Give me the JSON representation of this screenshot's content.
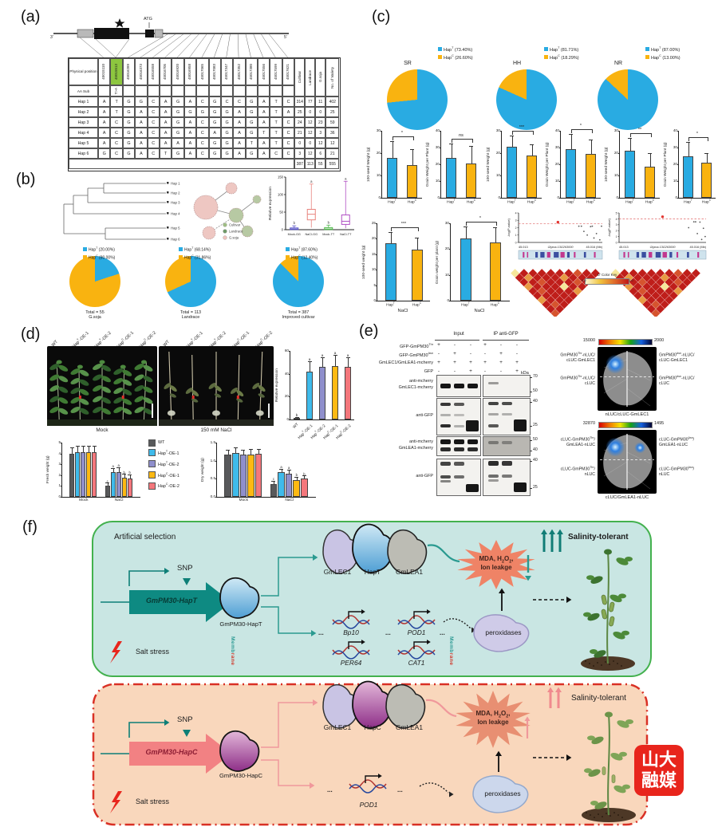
{
  "panel_labels": {
    "a": "(a)",
    "b": "(b)",
    "c": "(c)",
    "d": "(d)",
    "e": "(e)",
    "f": "(f)"
  },
  "panel_a": {
    "gene": {
      "atg": "ATG",
      "left_end": "3'",
      "right_end": "5'"
    },
    "table": {
      "header_label": "Physical position",
      "aa_label": "AA Sub",
      "aa_value": "T>A",
      "highlight_index": 1,
      "positions": [
        "45015110",
        "45015513",
        "45016289",
        "45016373",
        "45016558",
        "45016705",
        "45016920",
        "45016958",
        "45017065",
        "45017083",
        "45017347",
        "45017352",
        "45017380",
        "45017556",
        "45017599",
        "45017621"
      ],
      "count_headers": [
        "Cultivar",
        "Landrace",
        "G.soja",
        "No. of Variety"
      ],
      "haplotypes": [
        {
          "name": "Hap 1",
          "alleles": [
            "A",
            "T",
            "G",
            "G",
            "C",
            "A",
            "G",
            "A",
            "C",
            "G",
            "C",
            "C",
            "G",
            "A",
            "T",
            "C"
          ],
          "counts": [
            "314",
            "77",
            "11",
            "402"
          ]
        },
        {
          "name": "Hap 2",
          "alleles": [
            "A",
            "T",
            "G",
            "A",
            "C",
            "A",
            "G",
            "G",
            "G",
            "G",
            "G",
            "A",
            "G",
            "A",
            "T",
            "A"
          ],
          "counts": [
            "25",
            "0",
            "0",
            "25"
          ]
        },
        {
          "name": "Hap 3",
          "alleles": [
            "A",
            "C",
            "G",
            "A",
            "C",
            "A",
            "G",
            "A",
            "C",
            "G",
            "G",
            "A",
            "G",
            "A",
            "T",
            "C"
          ],
          "counts": [
            "24",
            "12",
            "23",
            "59"
          ]
        },
        {
          "name": "Hap 4",
          "alleles": [
            "A",
            "C",
            "G",
            "A",
            "C",
            "A",
            "G",
            "A",
            "C",
            "A",
            "G",
            "A",
            "G",
            "T",
            "T",
            "C"
          ],
          "counts": [
            "21",
            "12",
            "3",
            "36"
          ]
        },
        {
          "name": "Hap 5",
          "alleles": [
            "A",
            "C",
            "G",
            "A",
            "C",
            "A",
            "A",
            "A",
            "C",
            "G",
            "G",
            "A",
            "T",
            "A",
            "T",
            "C"
          ],
          "counts": [
            "0",
            "0",
            "12",
            "12"
          ]
        },
        {
          "name": "Hap 6",
          "alleles": [
            "G",
            "C",
            "G",
            "A",
            "C",
            "T",
            "G",
            "A",
            "C",
            "G",
            "G",
            "A",
            "G",
            "A",
            "C",
            "C"
          ],
          "counts": [
            "3",
            "12",
            "6",
            "21"
          ]
        }
      ],
      "totals": [
        "387",
        "113",
        "55",
        "555"
      ]
    }
  },
  "panel_b": {
    "tree_leaves": [
      "Hap 1",
      "Hap 2",
      "Hap 3",
      "Hap 4",
      "Hap 5",
      "Hap 6"
    ],
    "network_legend": [
      {
        "label": "Cultivar",
        "color": "#9fbe83"
      },
      {
        "label": "Landrace",
        "color": "#6f9a68"
      },
      {
        "label": "G.soja",
        "color": "#efc3bd"
      }
    ]
  },
  "panel_c": {
    "color_key": {
      "title": "D' Color Key",
      "min": "0.0",
      "max": "1.0"
    }
  },
  "panel_d": {
    "plant_labels": [
      "WT",
      "Hap^{T}-OE-1",
      "Hap^{T}-OE-2",
      "Hap^{C}-OE-1",
      "Hap^{C}-OE-2"
    ],
    "captions": [
      "Mock",
      "150 mM NaCl"
    ]
  },
  "panel_e": {
    "coip": {
      "col_groups": [
        "Input",
        "IP anti-GFP"
      ],
      "kda_unit": "kDa",
      "rows": [
        {
          "label": "GFP-GmPM30^{Thr}",
          "signs": [
            "+",
            "-",
            "-",
            "+",
            "-",
            "-"
          ]
        },
        {
          "label": "GFP-GmPM30^{Asn}",
          "signs": [
            "-",
            "+",
            "-",
            "-",
            "+",
            "-"
          ]
        },
        {
          "label": "GmLEC1/GmLEA1-mcherry",
          "signs": [
            "+",
            "+",
            "+",
            "+",
            "+",
            "+"
          ]
        },
        {
          "label": "GFP",
          "signs": [
            "-",
            "-",
            "+",
            "-",
            "-",
            "+"
          ]
        }
      ],
      "blot_labels": [
        [
          "anti-mcherry",
          "GmLEC1-mcherry"
        ],
        [
          "anti-GFP"
        ],
        [
          "anti-mcherry",
          "GmLEA1-mcherry"
        ],
        [
          "anti-GFP"
        ]
      ],
      "kda_marks": [
        [
          "70",
          "50"
        ],
        [
          "40",
          "25"
        ],
        [
          "50",
          "40"
        ],
        [
          "40",
          "25"
        ]
      ]
    },
    "luc": [
      {
        "scale": [
          "15000",
          "2000"
        ],
        "left_top": [
          "GmPM30^{Thr}-nLUC/",
          "cLUC-GmLEC1"
        ],
        "right_top": [
          "GmPM30^{Asn}-nLUC/",
          "cLUC-GmLEC1"
        ],
        "left_bottom": [
          "GmPM30^{Thr}-nLUC/",
          "cLUC"
        ],
        "right_bottom": [
          "GmPM30^{Asn}-nLUC/",
          "cLUC"
        ],
        "caption": "nLUC/cLUC-GmLEC1"
      },
      {
        "scale": [
          "32870",
          "1495"
        ],
        "left_top": [
          "cLUC-GmPM30^{Thr}/",
          "GmLEA1-nLUC"
        ],
        "right_top": [
          "cLUC-GmPM30^{Asn}/",
          "GmLEA1-nLUC"
        ],
        "left_bottom": [
          "cLUC-GmPM30^{Thr}/",
          "nLUC"
        ],
        "right_bottom": [
          "cLUC-GmPM30^{Asn}/",
          "nLUC"
        ],
        "caption": "cLUC/GmLEA1-nLUC"
      }
    ]
  },
  "panel_f": {
    "top": {
      "title": "Artificial selection",
      "snp": "SNP",
      "gene": "GmPM30-HapT",
      "protein": "GmPM30-HapT",
      "stress": "Salt stress",
      "membrane": "Membrane",
      "complex": [
        "GmLEC1",
        "HapT",
        "GmLEA1"
      ],
      "genes": [
        "Bp10",
        "POD1",
        "PER64",
        "CAT1"
      ],
      "dots": "...",
      "enzyme": "peroxidases",
      "burst": [
        "MDA, H_{2}O_{2},",
        "Ion leakge"
      ],
      "outcome": "Salinity-tolerant"
    },
    "bottom": {
      "snp": "SNP",
      "gene": "GmPM30-HapC",
      "protein": "GmPM30-HapC",
      "stress": "Salt stress",
      "membrane": "Membrane",
      "complex": [
        "GmLEC1",
        "HapC",
        "GmLEA1"
      ],
      "gene_single": "POD1",
      "dots": "...",
      "enzyme": "peroxidases",
      "burst": [
        "MDA, H_{2}O_{2},",
        "Ion leakge"
      ],
      "outcome": "Salinity-tolerant"
    },
    "logo": [
      "山大",
      "融媒"
    ]
  },
  "chart_data": {
    "box_expr": {
      "type": "box",
      "ylabel": "Relative expression",
      "ylim": [
        0,
        150
      ],
      "yticks": [
        0,
        50,
        100,
        150
      ],
      "categories": [
        "Mock-GG",
        "NaCl-GG",
        "Mock-TT",
        "NaCl-TT"
      ],
      "colors": [
        "#5b57c7",
        "#e8837d",
        "#53b94e",
        "#b04fc4"
      ],
      "boxes": [
        {
          "lo": 0,
          "q1": 0.5,
          "med": 2,
          "q3": 5,
          "hi": 11
        },
        {
          "lo": 6,
          "q1": 28,
          "med": 44,
          "q3": 58,
          "hi": 130
        },
        {
          "lo": 0,
          "q1": 0.5,
          "med": 2,
          "q3": 6,
          "hi": 13
        },
        {
          "lo": 4,
          "q1": 15,
          "med": 24,
          "q3": 42,
          "hi": 138
        }
      ],
      "letters": [
        "b",
        "a",
        "b",
        "a"
      ]
    },
    "pie_b1": {
      "type": "pie",
      "slices": [
        {
          "label": "Hap^{T} (20.00%)",
          "value": 20,
          "color": "#29abe2"
        },
        {
          "label": "Hap^{C} (80.00%)",
          "value": 80,
          "color": "#f9b310"
        }
      ],
      "caption": [
        "Total = 55",
        "G.soja"
      ]
    },
    "pie_b2": {
      "type": "pie",
      "slices": [
        {
          "label": "Hap^{T} (68.14%)",
          "value": 68.14,
          "color": "#29abe2"
        },
        {
          "label": "Hap^{C} (31.86%)",
          "value": 31.86,
          "color": "#f9b310"
        }
      ],
      "caption": [
        "Total = 113",
        "Landrace"
      ]
    },
    "pie_b3": {
      "type": "pie",
      "slices": [
        {
          "label": "Hap^{T} (87.60%)",
          "value": 87.6,
          "color": "#29abe2"
        },
        {
          "label": "Hap^{C} (12.40%)",
          "value": 12.4,
          "color": "#f9b310"
        }
      ],
      "caption": [
        "Total = 387",
        "Improved cultivar"
      ]
    },
    "pie_sr": {
      "type": "pie",
      "title": "SR",
      "slices": [
        {
          "label": "Hap^{T} (73.40%)",
          "value": 73.4,
          "color": "#29abe2"
        },
        {
          "label": "Hap^{C} (26.60%)",
          "value": 26.6,
          "color": "#f9b310"
        }
      ]
    },
    "pie_hh": {
      "type": "pie",
      "title": "HH",
      "slices": [
        {
          "label": "Hap^{T} (81.71%)",
          "value": 81.71,
          "color": "#29abe2"
        },
        {
          "label": "Hap^{C} (18.29%)",
          "value": 18.29,
          "color": "#f9b310"
        }
      ]
    },
    "pie_nr": {
      "type": "pie",
      "title": "NR",
      "slices": [
        {
          "label": "Hap^{T} (87.00%)",
          "value": 87,
          "color": "#29abe2"
        },
        {
          "label": "Hap^{C} (13.00%)",
          "value": 13,
          "color": "#f9b310"
        }
      ]
    },
    "hap_bars": [
      {
        "type": "bar",
        "ylabel": "100-seed Weight (g)",
        "ymax": 30,
        "yticks": [
          0,
          10,
          20,
          30
        ],
        "categories": [
          "Hap^{T}",
          "Hap^{C}"
        ],
        "values": [
          18,
          14.5
        ],
        "errors": [
          7,
          7
        ],
        "sig": "*",
        "colors": [
          "#29abe2",
          "#f9b310"
        ]
      },
      {
        "type": "bar",
        "ylabel": "Grain Weight per Plant (g)",
        "ymax": 40,
        "yticks": [
          0,
          10,
          20,
          30,
          40
        ],
        "categories": [
          "Hap^{T}",
          "Hap^{C}"
        ],
        "values": [
          24,
          20.5
        ],
        "errors": [
          8,
          10
        ],
        "sig": "ns",
        "colors": [
          "#29abe2",
          "#f9b310"
        ]
      },
      {
        "type": "bar",
        "ylabel": "100-seed Weight (g)",
        "ymax": 30,
        "yticks": [
          0,
          10,
          20,
          30
        ],
        "categories": [
          "Hap^{T}",
          "Hap^{C}"
        ],
        "values": [
          23,
          19
        ],
        "errors": [
          4.5,
          4.5
        ],
        "sig": "***",
        "colors": [
          "#29abe2",
          "#f9b310"
        ]
      },
      {
        "type": "bar",
        "ylabel": "Grain Weight per Plant (g)",
        "ymax": 40,
        "yticks": [
          0,
          10,
          20,
          30,
          40
        ],
        "categories": [
          "Hap^{T}",
          "Hap^{C}"
        ],
        "values": [
          29,
          26
        ],
        "errors": [
          8.5,
          8.5
        ],
        "sig": "*",
        "colors": [
          "#29abe2",
          "#f9b310"
        ]
      },
      {
        "type": "bar",
        "ylabel": "100-seed Weight (g)",
        "ymax": 30,
        "yticks": [
          0,
          10,
          20,
          30
        ],
        "categories": [
          "Hap^{T}",
          "Hap^{C}"
        ],
        "values": [
          21,
          14
        ],
        "errors": [
          5.5,
          5.5
        ],
        "sig": "**",
        "colors": [
          "#29abe2",
          "#f9b310"
        ]
      },
      {
        "type": "bar",
        "ylabel": "Grain Weight per Plant (g)",
        "ymax": 40,
        "yticks": [
          0,
          10,
          20,
          30,
          40
        ],
        "categories": [
          "Hap^{T}",
          "Hap^{C}"
        ],
        "values": [
          25,
          21
        ],
        "errors": [
          8,
          5
        ],
        "sig": "*",
        "colors": [
          "#29abe2",
          "#f9b310"
        ]
      },
      {
        "type": "bar",
        "ylabel": "100-seed weight (g)",
        "ymax": 25,
        "yticks": [
          0,
          5,
          10,
          15,
          20,
          25
        ],
        "categories": [
          "Hap^{T}",
          "Hap^{C}"
        ],
        "values": [
          18.5,
          16.5
        ],
        "errors": [
          3.5,
          3.7
        ],
        "sig": "***",
        "group": "NaCl",
        "colors": [
          "#29abe2",
          "#f9b310"
        ]
      },
      {
        "type": "bar",
        "ylabel": "Grain weight per plant (g)",
        "ymax": 30,
        "yticks": [
          0,
          10,
          20,
          30
        ],
        "categories": [
          "Hap^{T}",
          "Hap^{C}"
        ],
        "values": [
          24,
          22.5
        ],
        "errors": [
          4.5,
          5.5
        ],
        "sig": "*",
        "group": "NaCl",
        "colors": [
          "#29abe2",
          "#f9b310"
        ]
      }
    ],
    "expr": {
      "type": "bar",
      "ylabel": "Relative expression",
      "ymax": 60,
      "yticks": [
        0,
        20,
        40,
        60
      ],
      "categories": [
        "WT",
        "Hap^{T}-OE-1",
        "Hap^{T}-OE-2",
        "Hap^{C}-OE-1",
        "Hap^{C}-OE-2"
      ],
      "values": [
        0.8,
        42,
        46,
        47,
        46
      ],
      "errors": [
        0.4,
        8,
        8,
        9,
        8
      ],
      "letters": [
        "b",
        "a",
        "a",
        "a",
        "a"
      ],
      "colors": [
        "#58595b",
        "#3fbbeb",
        "#8f8fcc",
        "#fdb913",
        "#f4777c"
      ],
      "rotate": true
    },
    "fresh": {
      "type": "groupbar",
      "ylabel": "Fresh weight (g)",
      "ymax": 5,
      "yticks": [
        0,
        1,
        2,
        3,
        4,
        5
      ],
      "groups": [
        "Mock",
        "NaCl"
      ],
      "series": [
        "WT",
        "Hap^{T}-OE-1",
        "Hap^{T}-OE-2",
        "Hap^{C}-OE-1",
        "Hap^{C}-OE-2"
      ],
      "colors": [
        "#58595b",
        "#3fbbeb",
        "#8f8fcc",
        "#fdb913",
        "#f4777c"
      ],
      "values": [
        [
          3.95,
          4.1,
          4.15,
          4.15,
          4.1
        ],
        [
          1.0,
          2.25,
          2.25,
          1.75,
          1.7
        ]
      ],
      "errors": [
        [
          0.55,
          0.5,
          0.5,
          0.5,
          0.55
        ],
        [
          0.25,
          0.35,
          0.4,
          0.3,
          0.3
        ]
      ],
      "letters": [
        [
          "",
          "",
          "",
          "",
          ""
        ],
        [
          "c",
          "a",
          "a",
          "b",
          "b"
        ]
      ]
    },
    "dry": {
      "type": "groupbar",
      "ylabel": "Dry weight (g)",
      "ymax": 1.5,
      "yticks": [
        0,
        0.5,
        1,
        1.5
      ],
      "ytick_labels": [
        "0.0",
        "0.5",
        "1.0",
        "1.5"
      ],
      "groups": [
        "Mock",
        "NaCl"
      ],
      "series": [
        "WT",
        "Hap^{T}-OE-1",
        "Hap^{T}-OE-2",
        "Hap^{C}-OE-1",
        "Hap^{C}-OE-2"
      ],
      "colors": [
        "#58595b",
        "#3fbbeb",
        "#8f8fcc",
        "#fdb913",
        "#f4777c"
      ],
      "values": [
        [
          1.17,
          1.22,
          1.17,
          1.18,
          1.2
        ],
        [
          0.35,
          0.68,
          0.65,
          0.47,
          0.5
        ]
      ],
      "errors": [
        [
          0.12,
          0.12,
          0.1,
          0.12,
          0.1
        ],
        [
          0.07,
          0.08,
          0.08,
          0.07,
          0.07
        ]
      ],
      "letters": [
        [
          "",
          "",
          "",
          "",
          ""
        ],
        [
          "c",
          "a",
          "a",
          "b",
          "b"
        ]
      ]
    },
    "locus1": {
      "type": "scatter",
      "ylabel": "-log(P-value)",
      "ymax": 4,
      "threshold": 2.55,
      "lead": [
        0.47,
        2.75
      ],
      "points": [
        [
          0.72,
          2.2
        ],
        [
          0.75,
          2.2
        ],
        [
          0.78,
          1.5
        ],
        [
          0.82,
          1.0
        ],
        [
          0.86,
          2.15
        ],
        [
          0.88,
          2.2
        ],
        [
          0.9,
          0.6
        ],
        [
          0.93,
          1.2
        ],
        [
          0.97,
          0.35
        ],
        [
          0.99,
          2.2
        ]
      ],
      "xticks": [
        "45.013",
        "Glyma.13G263000",
        "45.016 (Mb)"
      ]
    },
    "locus2": {
      "type": "scatter",
      "ylabel": "-log(P-value)",
      "ymax": 5,
      "threshold": 4.0,
      "lead": [
        0.5,
        4.35
      ],
      "points": [
        [
          0.8,
          2.5
        ],
        [
          0.86,
          3.5
        ],
        [
          0.88,
          3.5
        ],
        [
          0.9,
          1.5
        ],
        [
          0.93,
          3.45
        ],
        [
          0.95,
          0.5
        ],
        [
          0.97,
          2.4
        ],
        [
          0.99,
          1.0
        ]
      ],
      "xticks": [
        "45.013",
        "Glyma.13G263000",
        "45.016 (Mb)"
      ]
    },
    "ld1": {
      "type": "heatmap",
      "rows": 10
    },
    "ld2": {
      "type": "heatmap",
      "rows": 10
    }
  }
}
